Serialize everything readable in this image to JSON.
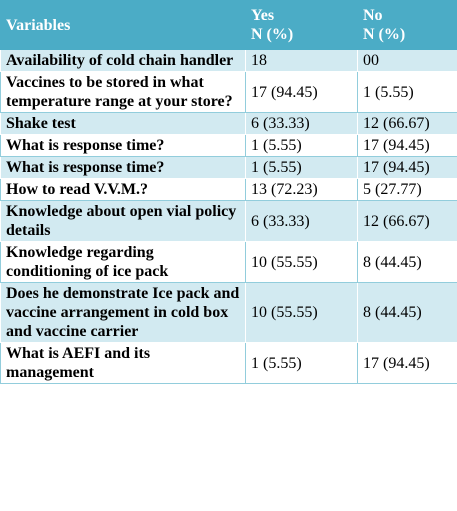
{
  "table": {
    "header": [
      [
        "Variables"
      ],
      [
        "Yes",
        "N (%)"
      ],
      [
        "No",
        "N (%)"
      ]
    ],
    "rows": [
      [
        "Availability of cold chain handler",
        "18",
        "00"
      ],
      [
        "Vaccines to be stored in what temperature range at your store?",
        "17 (94.45)",
        "1 (5.55)"
      ],
      [
        "Shake test",
        "6 (33.33)",
        "12 (66.67)"
      ],
      [
        "What is response time?",
        "1 (5.55)",
        "17 (94.45)"
      ],
      [
        "What is response time?",
        "1 (5.55)",
        "17 (94.45)"
      ],
      [
        "How to read V.V.M.?",
        "13 (72.23)",
        "5 (27.77)"
      ],
      [
        "Knowledge about open vial policy details",
        "6 (33.33)",
        "12 (66.67)"
      ],
      [
        "Knowledge regarding conditioning of ice pack",
        "10 (55.55)",
        "8 (44.45)"
      ],
      [
        "Does he demonstrate Ice pack and vaccine arrangement in cold box and vaccine carrier",
        "10 (55.55)",
        "8 (44.45)"
      ],
      [
        "What is AEFI and its management",
        "1 (5.55)",
        "17 (94.45)"
      ]
    ]
  }
}
